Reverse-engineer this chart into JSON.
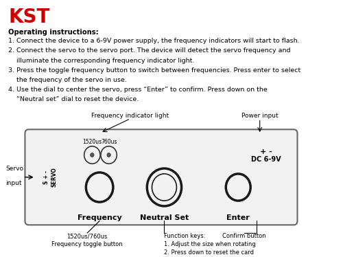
{
  "bg_color": "#ffffff",
  "kst_color": "#cc0000",
  "kst_text": "KST",
  "instr_title": "Operating instructions:",
  "instr_lines": [
    "1. Connect the device to a 6-9V power supply, the frequency indicators will start to flash.",
    "2. Connect the servo to the servo port. The device will detect the servo frequency and",
    "    illuminate the corresponding frequency indicator light.",
    "3. Press the toggle frequency button to switch between frequencies. Press enter to select",
    "    the frequency of the servo in use.",
    "4. Use the dial to center the servo, press “Enter” to confirm. Press down on the",
    "    “Neutral set” dial to reset the device."
  ],
  "freq_label": "Frequency indicator light",
  "power_label": "Power input",
  "servo_label_1": "Servo",
  "servo_label_2": "input",
  "freq1_label": "1520us",
  "freq2_label": "760us",
  "dc_label_1": "+ -",
  "dc_label_2": "DC 6-9V",
  "servo_port_label": "S + -\nSERVO",
  "knob1_label": "Frequency",
  "knob2_label": "Neutral Set",
  "knob3_label": "Enter",
  "bottom1_line1": "1520us/760us",
  "bottom1_line2": "Frequency toggle button",
  "bottom2_line1": "Function keys:",
  "bottom2_line2": "1. Adjust the size when rotating",
  "bottom2_line3": "2. Press down to reset the card",
  "bottom3_line1": "Confirm button"
}
